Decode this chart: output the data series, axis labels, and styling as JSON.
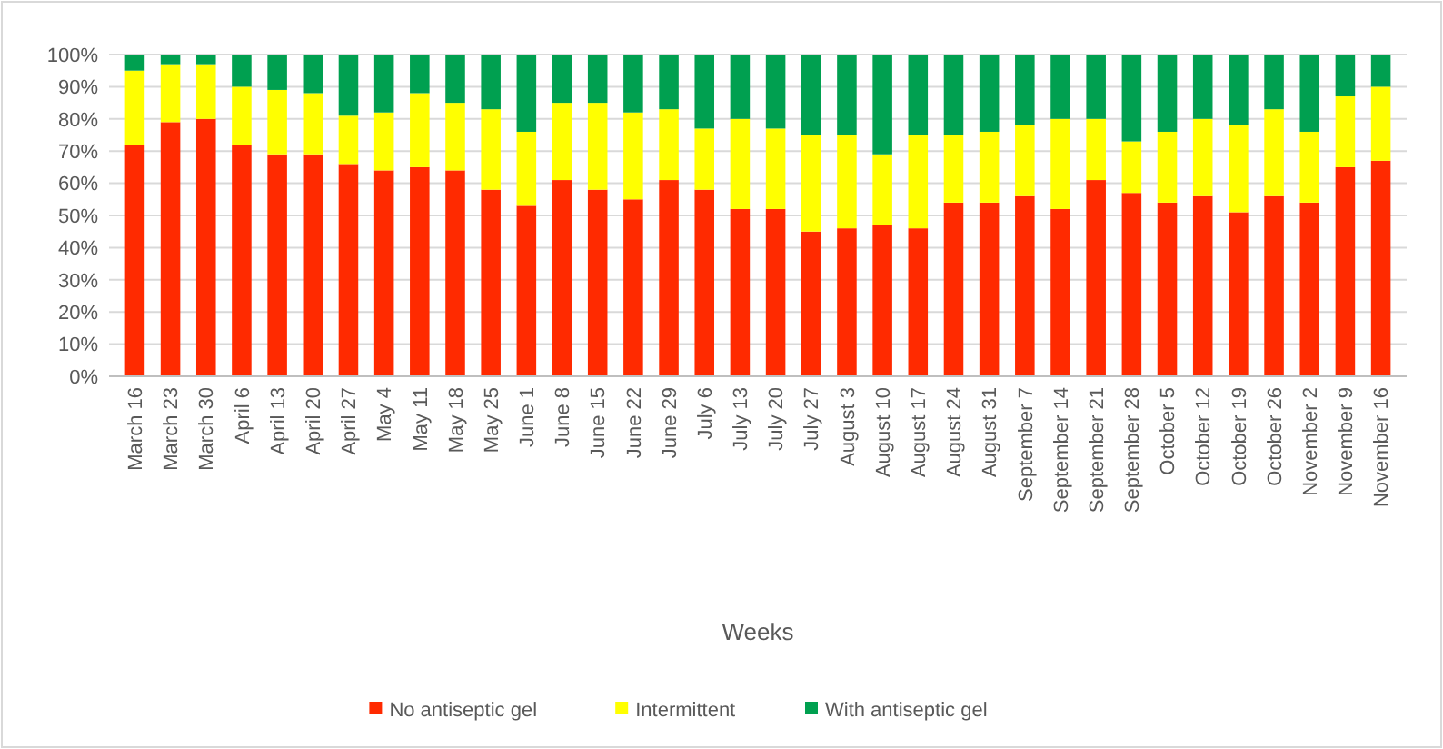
{
  "chart_data": {
    "type": "bar",
    "stacked": true,
    "xlabel": "Weeks",
    "categories": [
      "March 16",
      "March 23",
      "March 30",
      "April 6",
      "April 13",
      "April 20",
      "April 27",
      "May 4",
      "May 11",
      "May 18",
      "May 25",
      "June 1",
      "June 8",
      "June 15",
      "June 22",
      "June 29",
      "July 6",
      "July 13",
      "July 20",
      "July 27",
      "August 3",
      "August 10",
      "August 17",
      "August 24",
      "August 31",
      "September 7",
      "September 14",
      "September 21",
      "September 28",
      "October 5",
      "October 12",
      "October 19",
      "October 26",
      "November 2",
      "November 9",
      "November 16"
    ],
    "series": [
      {
        "name": "No antiseptic gel",
        "color": "#ff2a00",
        "values": [
          72,
          79,
          80,
          72,
          69,
          69,
          66,
          64,
          65,
          64,
          58,
          53,
          61,
          58,
          55,
          61,
          58,
          52,
          52,
          45,
          46,
          47,
          46,
          54,
          54,
          56,
          52,
          61,
          57,
          54,
          56,
          51,
          56,
          54,
          65,
          67
        ]
      },
      {
        "name": "Intermittent",
        "color": "#ffff00",
        "values": [
          23,
          18,
          17,
          18,
          20,
          19,
          15,
          18,
          23,
          21,
          25,
          23,
          24,
          27,
          27,
          22,
          19,
          28,
          25,
          30,
          29,
          22,
          29,
          21,
          22,
          22,
          28,
          19,
          16,
          22,
          24,
          27,
          27,
          22,
          22,
          23
        ]
      },
      {
        "name": "With antiseptic gel",
        "color": "#00a050",
        "values": [
          5,
          3,
          3,
          10,
          11,
          12,
          19,
          18,
          12,
          15,
          17,
          24,
          15,
          15,
          18,
          17,
          23,
          20,
          23,
          25,
          25,
          31,
          25,
          25,
          24,
          22,
          20,
          20,
          27,
          24,
          20,
          22,
          17,
          24,
          13,
          10
        ]
      }
    ],
    "ylim": [
      0,
      100
    ],
    "yticks": [
      {
        "value": 0,
        "label": "0%"
      },
      {
        "value": 10,
        "label": "10%"
      },
      {
        "value": 20,
        "label": "20%"
      },
      {
        "value": 30,
        "label": "30%"
      },
      {
        "value": 40,
        "label": "40%"
      },
      {
        "value": 50,
        "label": "50%"
      },
      {
        "value": 60,
        "label": "60%"
      },
      {
        "value": 70,
        "label": "70%"
      },
      {
        "value": 80,
        "label": "80%"
      },
      {
        "value": 90,
        "label": "90%"
      },
      {
        "value": 100,
        "label": "100%"
      }
    ],
    "grid": "y",
    "legend": "bottom"
  }
}
